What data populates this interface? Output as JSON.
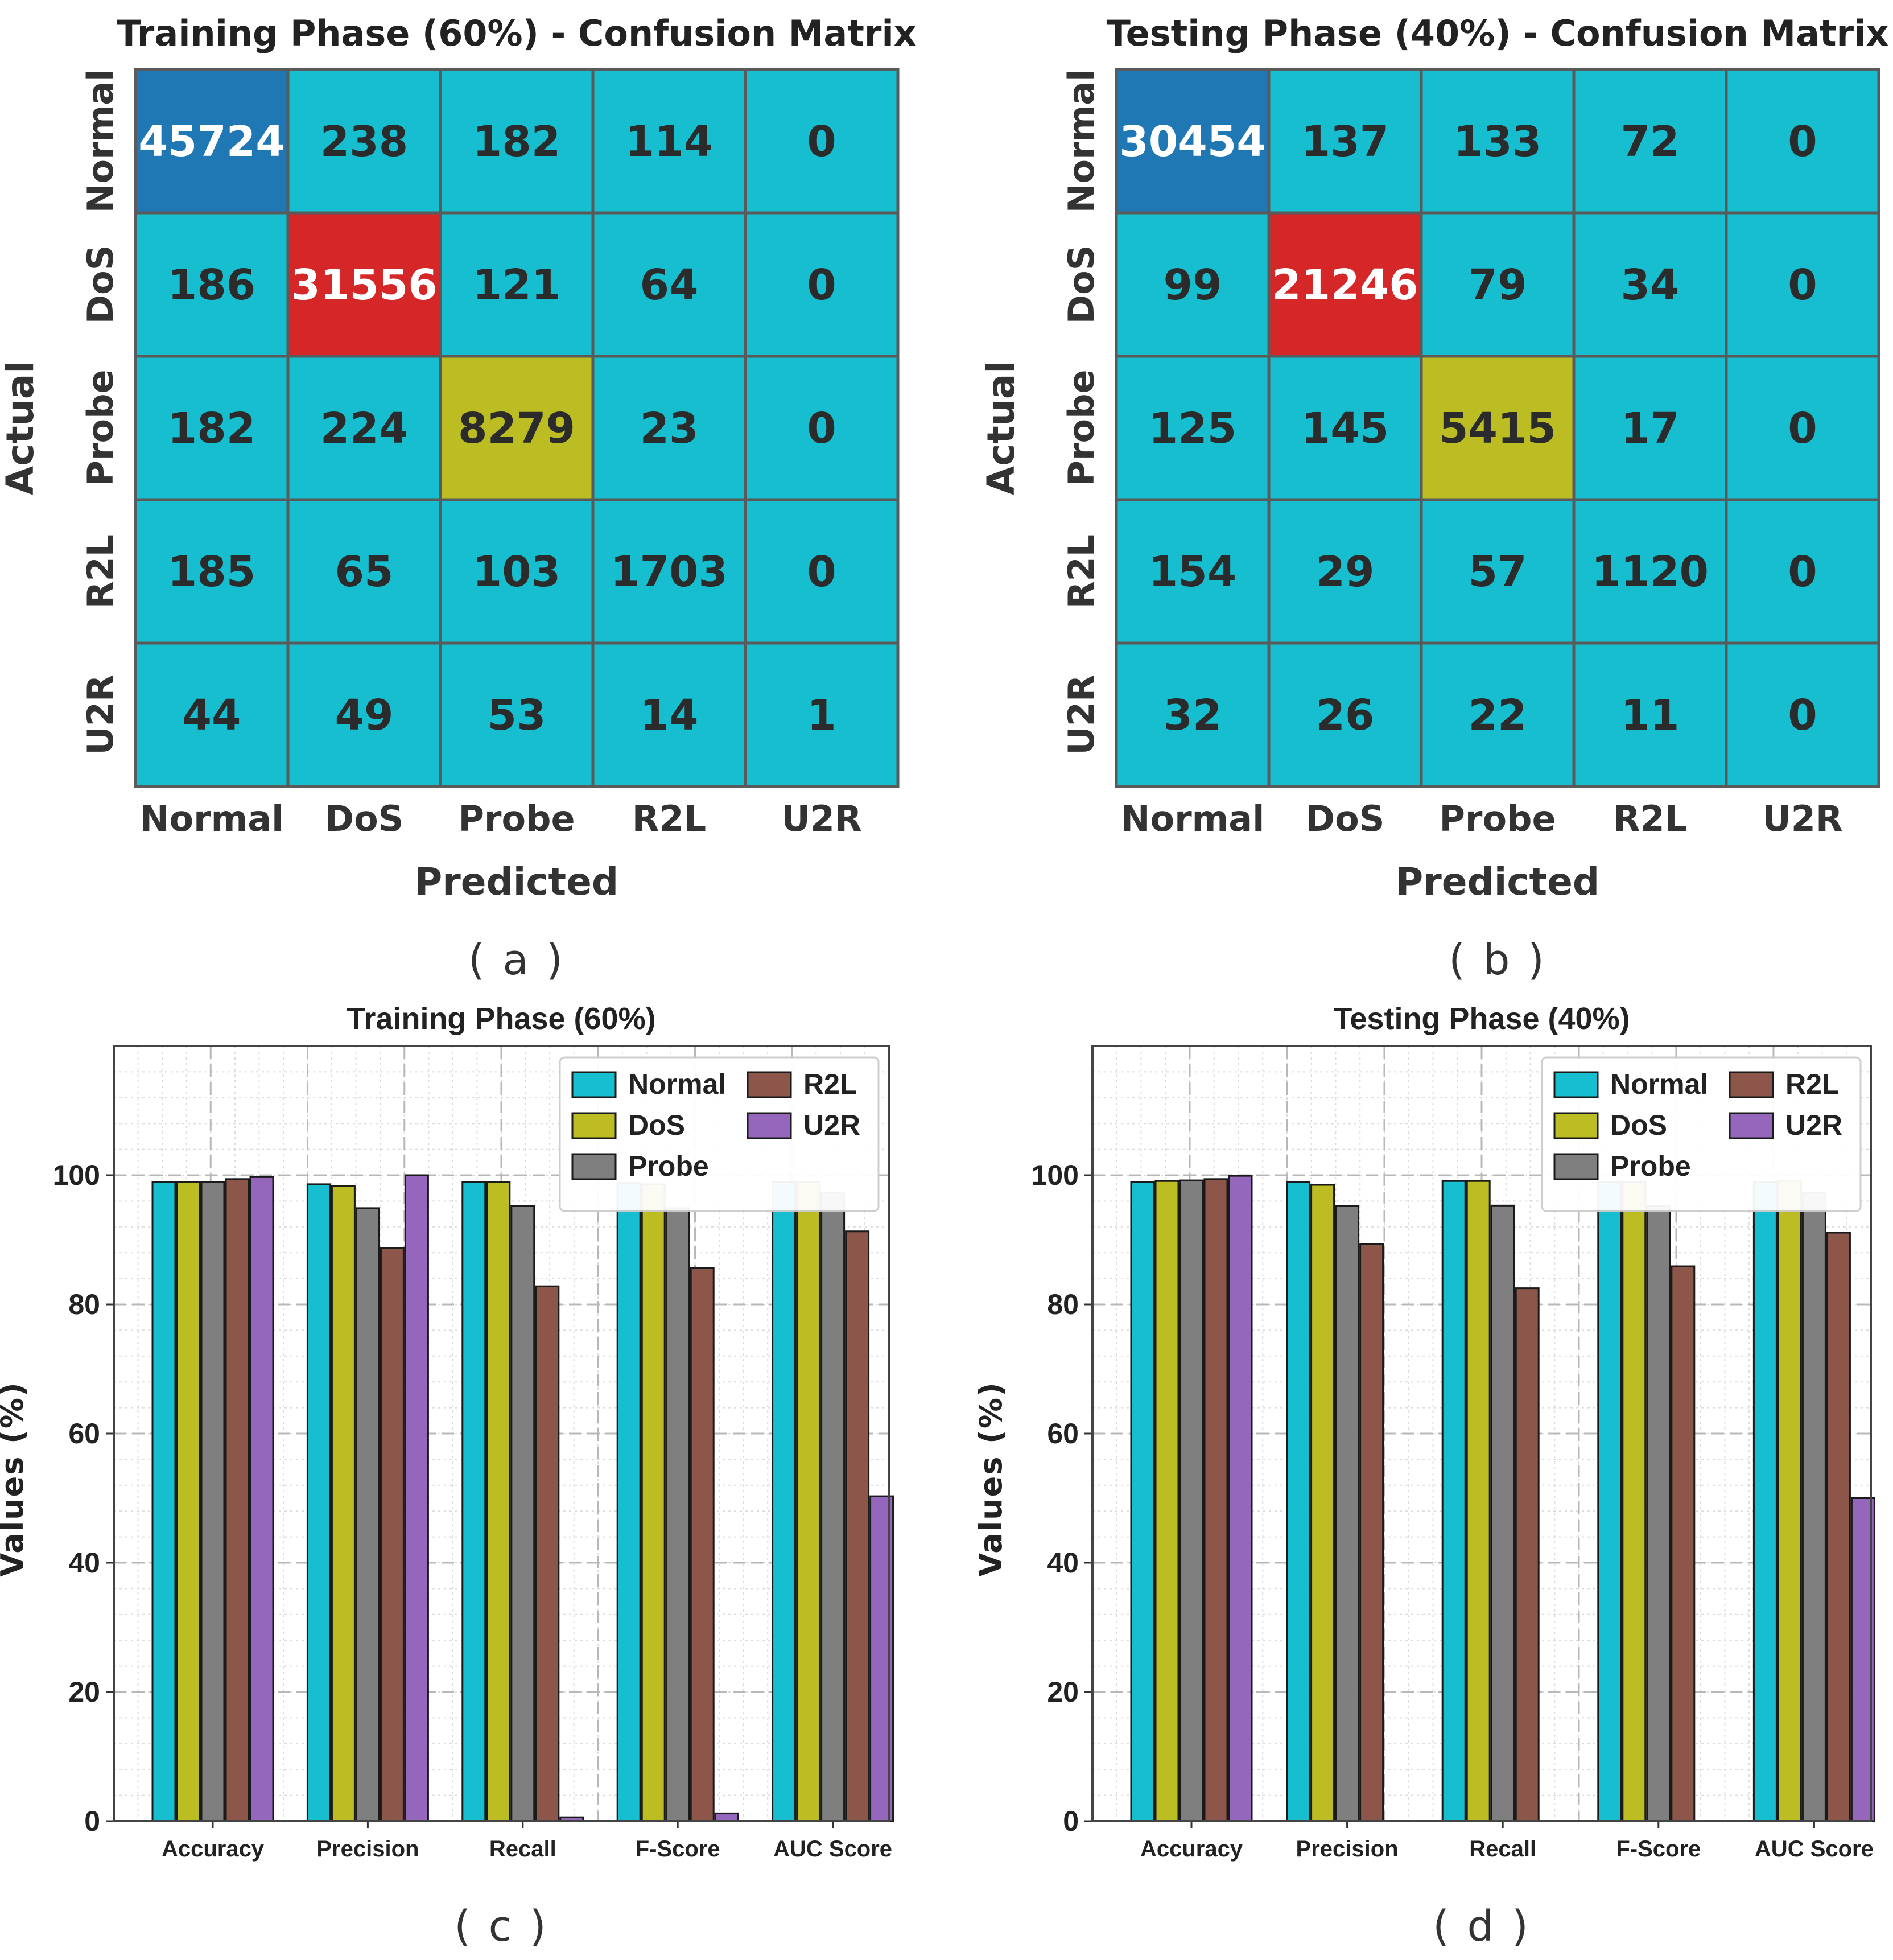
{
  "chart_data": [
    {
      "type": "heatmap",
      "panel_label": "( a )",
      "title": "Training Phase (60%) - Confusion Matrix",
      "xlabel": "Predicted",
      "ylabel": "Actual",
      "xticklabels": [
        "Normal",
        "DoS",
        "Probe",
        "R2L",
        "U2R"
      ],
      "yticklabels": [
        "Normal",
        "DoS",
        "Probe",
        "R2L",
        "U2R"
      ],
      "values": [
        [
          45724,
          238,
          182,
          114,
          0
        ],
        [
          186,
          31556,
          121,
          64,
          0
        ],
        [
          182,
          224,
          8279,
          23,
          0
        ],
        [
          185,
          65,
          103,
          1703,
          0
        ],
        [
          44,
          49,
          53,
          14,
          1
        ]
      ]
    },
    {
      "type": "heatmap",
      "panel_label": "( b )",
      "title": "Testing Phase (40%) - Confusion Matrix",
      "xlabel": "Predicted",
      "ylabel": "Actual",
      "xticklabels": [
        "Normal",
        "DoS",
        "Probe",
        "R2L",
        "U2R"
      ],
      "yticklabels": [
        "Normal",
        "DoS",
        "Probe",
        "R2L",
        "U2R"
      ],
      "values": [
        [
          30454,
          137,
          133,
          72,
          0
        ],
        [
          99,
          21246,
          79,
          34,
          0
        ],
        [
          125,
          145,
          5415,
          17,
          0
        ],
        [
          154,
          29,
          57,
          1120,
          0
        ],
        [
          32,
          26,
          22,
          11,
          0
        ]
      ]
    },
    {
      "type": "bar",
      "panel_label": "( c )",
      "title": "Training Phase (60%)",
      "xlabel": "",
      "ylabel": "Values (%)",
      "ylim": [
        0,
        120
      ],
      "yticks": [
        0,
        20,
        40,
        60,
        80,
        100
      ],
      "grid": true,
      "legend_position": "top-right",
      "categories": [
        "Accuracy",
        "Precision",
        "Recall",
        "F-Score",
        "AUC Score"
      ],
      "series": [
        {
          "name": "Normal",
          "values": [
            98.9,
            98.6,
            98.9,
            98.8,
            98.9
          ]
        },
        {
          "name": "DoS",
          "values": [
            98.9,
            98.3,
            98.9,
            98.6,
            98.9
          ]
        },
        {
          "name": "Probe",
          "values": [
            98.9,
            94.9,
            95.2,
            94.9,
            97.3
          ]
        },
        {
          "name": "R2L",
          "values": [
            99.4,
            88.7,
            82.8,
            85.6,
            91.3
          ]
        },
        {
          "name": "U2R",
          "values": [
            99.7,
            100.0,
            0.6,
            1.2,
            50.3
          ]
        }
      ]
    },
    {
      "type": "bar",
      "panel_label": "( d )",
      "title": "Testing Phase (40%)",
      "xlabel": "",
      "ylabel": "Values (%)",
      "ylim": [
        0,
        120
      ],
      "yticks": [
        0,
        20,
        40,
        60,
        80,
        100
      ],
      "grid": true,
      "legend_position": "top-right",
      "categories": [
        "Accuracy",
        "Precision",
        "Recall",
        "F-Score",
        "AUC Score"
      ],
      "series": [
        {
          "name": "Normal",
          "values": [
            98.9,
            98.9,
            99.1,
            98.9,
            98.9
          ]
        },
        {
          "name": "DoS",
          "values": [
            99.1,
            98.5,
            99.1,
            98.9,
            99.1
          ]
        },
        {
          "name": "Probe",
          "values": [
            99.2,
            95.2,
            95.3,
            95.2,
            97.3
          ]
        },
        {
          "name": "R2L",
          "values": [
            99.4,
            89.3,
            82.5,
            85.9,
            91.1
          ]
        },
        {
          "name": "U2R",
          "values": [
            99.9,
            0.0,
            0.0,
            0.0,
            50.0
          ]
        }
      ]
    }
  ],
  "colors": {
    "Normal": "#17becf",
    "DoS": "#bcbd22",
    "Probe": "#7f7f7f",
    "R2L": "#8c564b",
    "U2R": "#9467bd",
    "heat_low": "#17becf",
    "heat_normal": "#1f77b4",
    "heat_dos": "#d62728",
    "heat_probe": "#bcbd22"
  }
}
